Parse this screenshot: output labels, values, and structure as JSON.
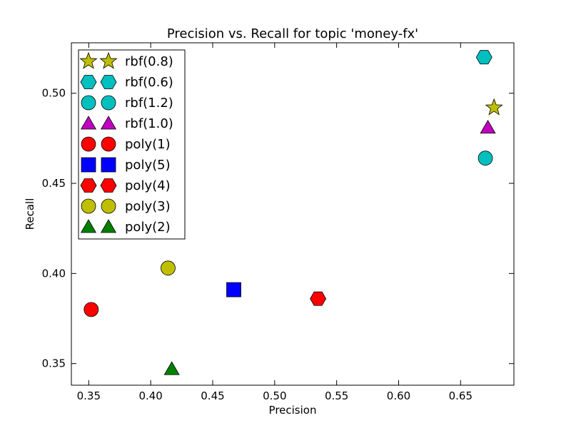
{
  "chart_data": {
    "type": "scatter",
    "title": "Precision vs. Recall for topic 'money-fx'",
    "xlabel": "Precision",
    "ylabel": "Recall",
    "xlim": [
      0.336,
      0.693
    ],
    "ylim": [
      0.338,
      0.528
    ],
    "xticks": [
      {
        "value": 0.35,
        "label": "0.35"
      },
      {
        "value": 0.4,
        "label": "0.40"
      },
      {
        "value": 0.45,
        "label": "0.45"
      },
      {
        "value": 0.5,
        "label": "0.50"
      },
      {
        "value": 0.55,
        "label": "0.55"
      },
      {
        "value": 0.6,
        "label": "0.60"
      },
      {
        "value": 0.65,
        "label": "0.65"
      }
    ],
    "yticks": [
      {
        "value": 0.35,
        "label": "0.35"
      },
      {
        "value": 0.4,
        "label": "0.40"
      },
      {
        "value": 0.45,
        "label": "0.45"
      },
      {
        "value": 0.5,
        "label": "0.50"
      }
    ],
    "grid": false,
    "legend_position": "top-left",
    "series": [
      {
        "name": "rbf(0.8)",
        "marker": "star",
        "color": "#bfbf00",
        "x": 0.677,
        "y": 0.492
      },
      {
        "name": "rbf(0.6)",
        "marker": "hexagon",
        "color": "#00bfbf",
        "x": 0.669,
        "y": 0.52
      },
      {
        "name": "rbf(1.2)",
        "marker": "circle",
        "color": "#00bfbf",
        "x": 0.67,
        "y": 0.464
      },
      {
        "name": "rbf(1.0)",
        "marker": "triangle",
        "color": "#bf00bf",
        "x": 0.672,
        "y": 0.481
      },
      {
        "name": "poly(1)",
        "marker": "circle",
        "color": "#ff0000",
        "x": 0.352,
        "y": 0.38
      },
      {
        "name": "poly(5)",
        "marker": "square",
        "color": "#0000ff",
        "x": 0.467,
        "y": 0.391
      },
      {
        "name": "poly(4)",
        "marker": "hexagon",
        "color": "#ff0000",
        "x": 0.535,
        "y": 0.386
      },
      {
        "name": "poly(3)",
        "marker": "circle",
        "color": "#bfbf00",
        "x": 0.414,
        "y": 0.403
      },
      {
        "name": "poly(2)",
        "marker": "triangle",
        "color": "#008000",
        "x": 0.417,
        "y": 0.347
      }
    ]
  }
}
